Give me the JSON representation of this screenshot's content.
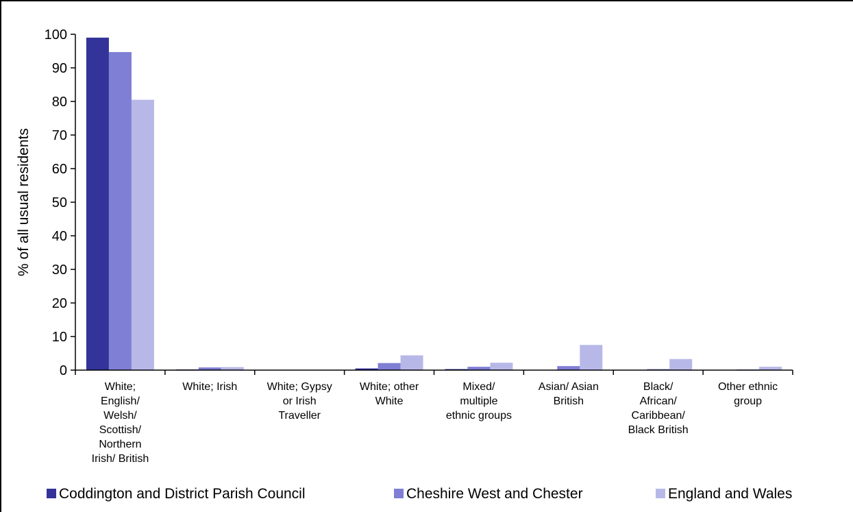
{
  "chart_data": {
    "type": "bar",
    "ylabel": "% of all usual residents",
    "xlabel": "",
    "ylim": [
      0,
      100
    ],
    "yticks": [
      0,
      10,
      20,
      30,
      40,
      50,
      60,
      70,
      80,
      90,
      100
    ],
    "grid": false,
    "legend_position": "bottom",
    "categories": [
      "White; English/ Welsh/ Scottish/ Northern Irish/ British",
      "White; Irish",
      "White; Gypsy or Irish Traveller",
      "White; other White",
      "Mixed/ multiple ethnic groups",
      "Asian/ Asian British",
      "Black/ African/ Caribbean/ Black British",
      "Other ethnic group"
    ],
    "category_lines": [
      [
        "White;",
        "English/",
        "Welsh/",
        "Scottish/",
        "Northern",
        "Irish/ British"
      ],
      [
        "White; Irish"
      ],
      [
        "White; Gypsy",
        "or Irish",
        "Traveller"
      ],
      [
        "White; other",
        "White"
      ],
      [
        "Mixed/",
        "multiple",
        "ethnic groups"
      ],
      [
        "Asian/ Asian",
        "British"
      ],
      [
        "Black/",
        "African/",
        "Caribbean/",
        "Black British"
      ],
      [
        "Other ethnic",
        "group"
      ]
    ],
    "series": [
      {
        "name": "Coddington and District Parish Council",
        "color": "#333399",
        "values": [
          99.0,
          0.2,
          0.0,
          0.5,
          0.3,
          0.0,
          0.0,
          0.0
        ]
      },
      {
        "name": "Cheshire West and Chester",
        "color": "#7f7fd5",
        "values": [
          94.7,
          0.8,
          0.1,
          2.1,
          1.0,
          1.2,
          0.3,
          0.2
        ]
      },
      {
        "name": "England and Wales",
        "color": "#b8b8e8",
        "values": [
          80.5,
          0.9,
          0.1,
          4.4,
          2.2,
          7.5,
          3.3,
          1.0
        ]
      }
    ]
  }
}
